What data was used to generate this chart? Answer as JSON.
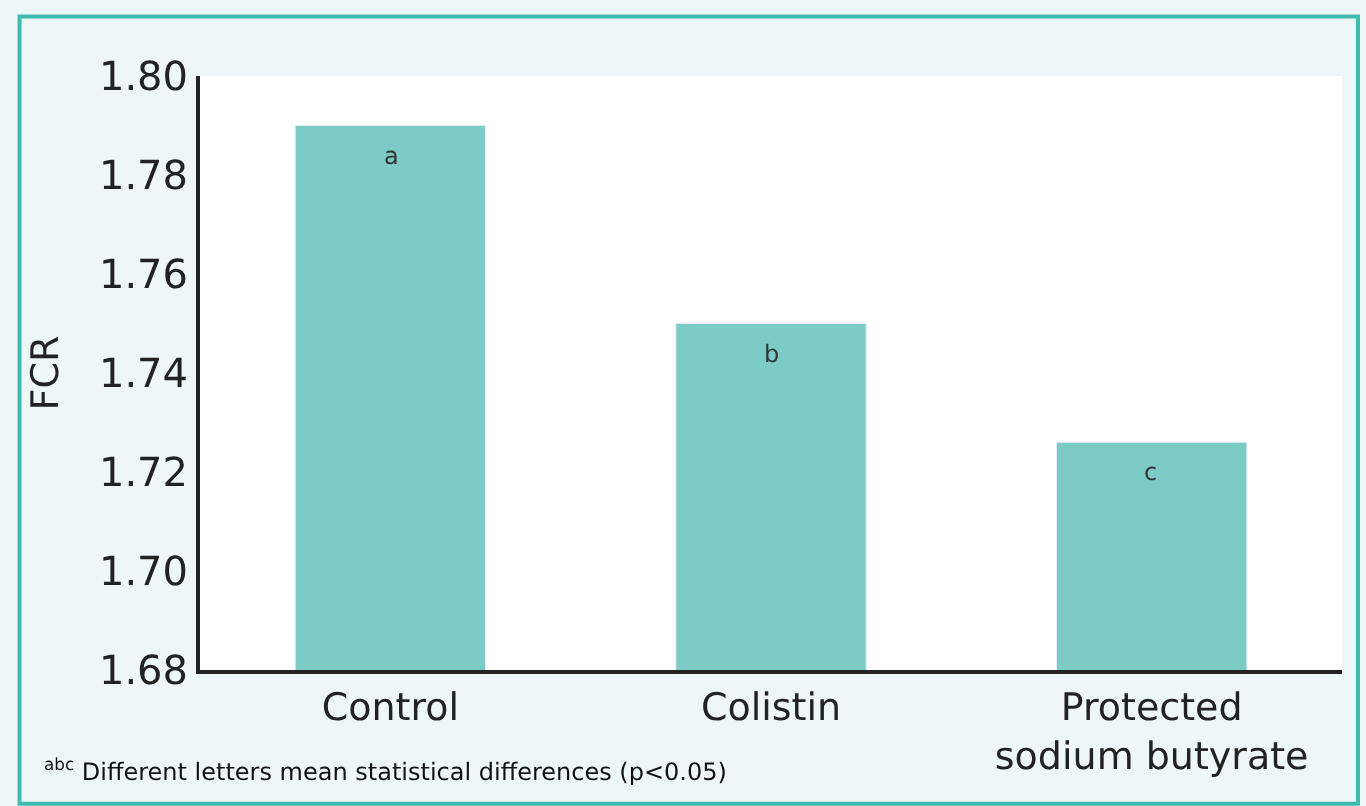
{
  "chart_data": {
    "type": "bar",
    "ylabel": "FCR",
    "categories": [
      "Control",
      "Colistin",
      "Protected sodium butyrate"
    ],
    "values": [
      1.79,
      1.75,
      1.726
    ],
    "color": "#7ccbc6",
    "ylim": [
      1.68,
      1.8
    ],
    "yticks": [
      1.68,
      {
        "value": 1.7,
        "label": "1.70"
      },
      1.72,
      1.74,
      1.76,
      1.78,
      {
        "value": 1.8,
        "label": "1.80"
      }
    ],
    "annotations": [
      {
        "text": "a",
        "x": "Control",
        "y": 1.79
      },
      {
        "text": "b",
        "x": "Colistin",
        "y": 1.75
      },
      {
        "text": "c",
        "x": "Protected sodium butyrate",
        "y": 1.726
      },
      "$^{abc}$ Different letters mean statistical differences (p<0.05)"
    ]
  }
}
